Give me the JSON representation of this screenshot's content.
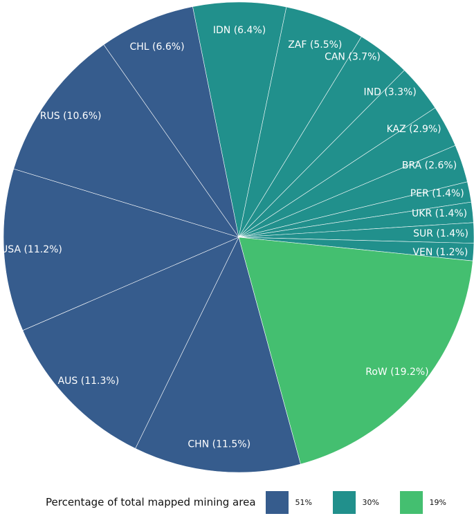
{
  "chart_data": {
    "type": "pie",
    "title": "",
    "start_angle_deg_from_top": -11.3,
    "direction": "clockwise",
    "slices": [
      {
        "label": "IDN (6.4%)",
        "value": 6.4,
        "group": 1
      },
      {
        "label": "ZAF (5.5%)",
        "value": 5.5,
        "group": 1
      },
      {
        "label": "CAN (3.7%)",
        "value": 3.7,
        "group": 1
      },
      {
        "label": "IND (3.3%)",
        "value": 3.3,
        "group": 1
      },
      {
        "label": "KAZ (2.9%)",
        "value": 2.9,
        "group": 1
      },
      {
        "label": "BRA (2.6%)",
        "value": 2.6,
        "group": 1
      },
      {
        "label": "PER (1.4%)",
        "value": 1.4,
        "group": 1
      },
      {
        "label": "UKR (1.4%)",
        "value": 1.4,
        "group": 1
      },
      {
        "label": "SUR (1.4%)",
        "value": 1.4,
        "group": 1
      },
      {
        "label": "VEN (1.2%)",
        "value": 1.2,
        "group": 1
      },
      {
        "label": "RoW (19.2%)",
        "value": 19.2,
        "group": 2
      },
      {
        "label": "CHN (11.5%)",
        "value": 11.5,
        "group": 0
      },
      {
        "label": "AUS (11.3%)",
        "value": 11.3,
        "group": 0
      },
      {
        "label": "USA (11.2%)",
        "value": 11.2,
        "group": 0
      },
      {
        "label": "RUS (10.6%)",
        "value": 10.6,
        "group": 0
      },
      {
        "label": "CHL (6.6%)",
        "value": 6.6,
        "group": 0
      }
    ],
    "legend": {
      "title": "Percentage of total mapped mining area",
      "placement": "bottom",
      "entries": [
        {
          "label": "51%",
          "color": "#365c8d"
        },
        {
          "label": "30%",
          "color": "#21908c"
        },
        {
          "label": "19%",
          "color": "#44bf70"
        }
      ]
    }
  }
}
